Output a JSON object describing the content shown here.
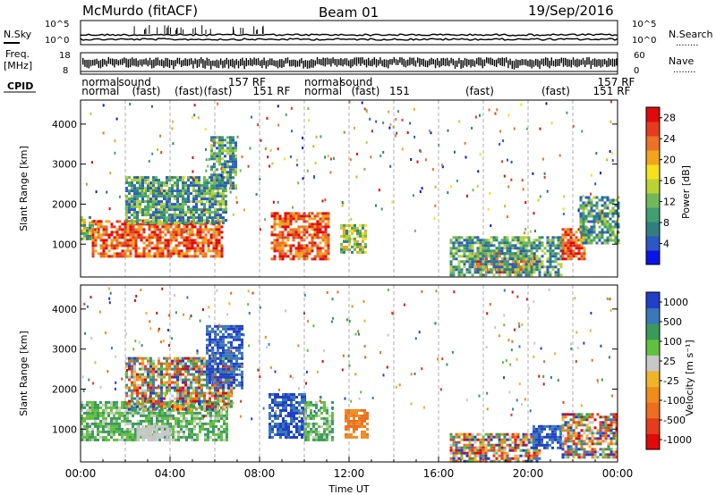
{
  "header": {
    "station": "McMurdo (fitACF)",
    "beam": "Beam 01",
    "date": "19/Sep/2016"
  },
  "strip_labels": {
    "nsky": "N.Sky",
    "nsearch": "N.Search",
    "freq": "Freq.",
    "freq_unit": "[MHz]",
    "nave": "Nave",
    "cpid": "CPID",
    "dots": "........"
  },
  "strip_ticks": {
    "noise_left_top": "10^5",
    "noise_left_bottom": "10^0",
    "noise_right_top": "10^5",
    "noise_right_bottom": "10^0",
    "freq_top": "18",
    "freq_bottom": "8",
    "nave_top": "60",
    "nave_bottom": "0"
  },
  "cpid_labels": [
    {
      "text": "normal",
      "t": 0.05,
      "row": 1
    },
    {
      "text": "normal",
      "t": 0.05,
      "row": 2
    },
    {
      "text": "sound",
      "t": 1.7,
      "row": 1
    },
    {
      "text": "(fast)",
      "t": 2.3,
      "row": 2
    },
    {
      "text": "(fast)",
      "t": 4.2,
      "row": 2
    },
    {
      "text": "157 RF",
      "t": 6.6,
      "row": 1
    },
    {
      "text": "(fast)",
      "t": 5.5,
      "row": 2
    },
    {
      "text": "151 RF",
      "t": 7.7,
      "row": 2
    },
    {
      "text": "normal",
      "t": 10.0,
      "row": 1
    },
    {
      "text": "normal",
      "t": 10.0,
      "row": 2
    },
    {
      "text": "sound",
      "t": 11.6,
      "row": 1
    },
    {
      "text": "(fast)",
      "t": 12.1,
      "row": 2
    },
    {
      "text": "151",
      "t": 13.8,
      "row": 2
    },
    {
      "text": "(fast)",
      "t": 17.2,
      "row": 2
    },
    {
      "text": "(fast)",
      "t": 20.6,
      "row": 2
    },
    {
      "text": "157 RF",
      "t": 23.1,
      "row": 1
    },
    {
      "text": "151 RF",
      "t": 22.9,
      "row": 2
    }
  ],
  "chart_data": [
    {
      "type": "heatmap",
      "name": "Power",
      "ylabel": "Slant Range [km]",
      "xlim": [
        0,
        24
      ],
      "ylim": [
        180,
        4600
      ],
      "yticks": [
        1000,
        2000,
        3000,
        4000
      ],
      "colorbar": {
        "label": "Power [dB]",
        "range": [
          0,
          30
        ],
        "ticks": [
          "4",
          "8",
          "12",
          "16",
          "20",
          "24",
          "28"
        ],
        "colors": [
          "#0a14e6",
          "#2d58c4",
          "#2f7f82",
          "#40a070",
          "#72b85a",
          "#b9d236",
          "#f5e11e",
          "#f0a51e",
          "#eb7228",
          "#e63c1e",
          "#e00a0a"
        ]
      },
      "regions": [
        {
          "t0": 0.0,
          "t1": 0.5,
          "r0": 1100,
          "r1": 1700,
          "level": "mid"
        },
        {
          "t0": 0.5,
          "t1": 6.3,
          "r0": 700,
          "r1": 1600,
          "level": "high"
        },
        {
          "t0": 2.0,
          "t1": 6.5,
          "r0": 1500,
          "r1": 2700,
          "level": "low"
        },
        {
          "t0": 5.8,
          "t1": 7.0,
          "r0": 2400,
          "r1": 3700,
          "level": "low"
        },
        {
          "t0": 8.5,
          "t1": 11.1,
          "r0": 600,
          "r1": 1800,
          "level": "high"
        },
        {
          "t0": 11.6,
          "t1": 12.7,
          "r0": 800,
          "r1": 1500,
          "level": "mid"
        },
        {
          "t0": 17.6,
          "t1": 20.3,
          "r0": 300,
          "r1": 800,
          "level": "high"
        },
        {
          "t0": 16.5,
          "t1": 21.5,
          "r0": 200,
          "r1": 1200,
          "level": "low"
        },
        {
          "t0": 21.5,
          "t1": 22.5,
          "r0": 600,
          "r1": 1400,
          "level": "high"
        },
        {
          "t0": 22.3,
          "t1": 24.0,
          "r0": 1000,
          "r1": 2200,
          "level": "low"
        }
      ]
    },
    {
      "type": "heatmap",
      "name": "Velocity",
      "ylabel": "Slant Range [km]",
      "xlabel": "Time UT",
      "xlim": [
        0,
        24
      ],
      "ylim": [
        180,
        4600
      ],
      "yticks": [
        1000,
        2000,
        3000,
        4000
      ],
      "xtick_labels": [
        "00:00",
        "04:00",
        "08:00",
        "12:00",
        "16:00",
        "20:00",
        "00:00"
      ],
      "xtick_values": [
        0,
        4,
        8,
        12,
        16,
        20,
        24
      ],
      "colorbar": {
        "label": "Velocity [m s⁻¹]",
        "range": [
          -1250,
          1250
        ],
        "ticks": [
          "1000",
          "500",
          "100",
          "25",
          "-25",
          "-100",
          "-500",
          "-1000"
        ],
        "colors": [
          "#2040c8",
          "#3a78b8",
          "#3a9a5a",
          "#62c040",
          "#c8c8c8",
          "#f0b428",
          "#f08c1e",
          "#eb6e1e",
          "#e63c1e",
          "#e00a0a"
        ]
      },
      "regions": [
        {
          "t0": 0.0,
          "t1": 6.5,
          "r0": 700,
          "r1": 1700,
          "level": "green"
        },
        {
          "t0": 2.5,
          "t1": 4.0,
          "r0": 700,
          "r1": 1100,
          "level": "grey"
        },
        {
          "t0": 2.0,
          "t1": 6.8,
          "r0": 1500,
          "r1": 2800,
          "level": "mix"
        },
        {
          "t0": 5.6,
          "t1": 7.2,
          "r0": 2000,
          "r1": 3600,
          "level": "blue"
        },
        {
          "t0": 8.4,
          "t1": 10.0,
          "r0": 800,
          "r1": 1900,
          "level": "blue"
        },
        {
          "t0": 10.0,
          "t1": 11.3,
          "r0": 700,
          "r1": 1700,
          "level": "green"
        },
        {
          "t0": 11.8,
          "t1": 12.8,
          "r0": 800,
          "r1": 1500,
          "level": "orange"
        },
        {
          "t0": 16.5,
          "t1": 20.5,
          "r0": 200,
          "r1": 900,
          "level": "mix"
        },
        {
          "t0": 20.2,
          "t1": 21.5,
          "r0": 500,
          "r1": 1100,
          "level": "blue"
        },
        {
          "t0": 21.5,
          "t1": 24.0,
          "r0": 300,
          "r1": 1400,
          "level": "mix"
        }
      ]
    }
  ]
}
